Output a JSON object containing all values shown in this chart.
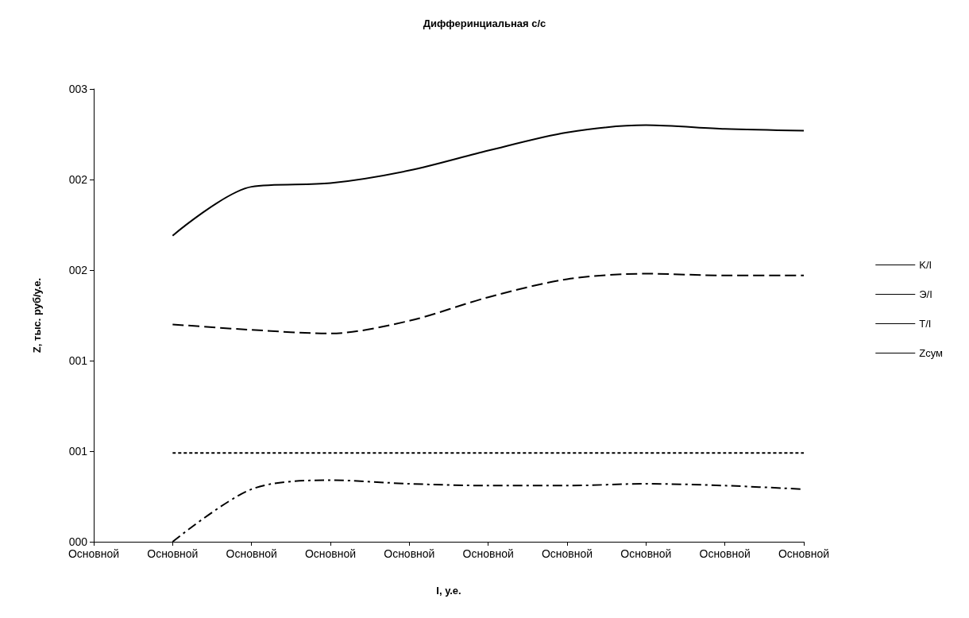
{
  "chart_data": {
    "type": "line",
    "title": "Дифферинциальная с/с",
    "xlabel": "I, у.е.",
    "ylabel": "Z, тыс. руб/у.е.",
    "categories": [
      "Основной",
      "Основной",
      "Основной",
      "Основной",
      "Основной",
      "Основной",
      "Основной",
      "Основной",
      "Основной",
      "Основной"
    ],
    "series": [
      {
        "name": "K/I",
        "color": "#000000",
        "line_style": "dotted",
        "values": [
          null,
          0.49,
          0.49,
          0.49,
          0.49,
          0.49,
          0.49,
          0.49,
          0.49,
          0.49
        ]
      },
      {
        "name": "Э/I",
        "color": "#000000",
        "line_style": "dashed",
        "values": [
          null,
          1.2,
          1.17,
          1.15,
          1.22,
          1.35,
          1.45,
          1.48,
          1.47,
          1.47
        ]
      },
      {
        "name": "T/I",
        "color": "#000000",
        "line_style": "dashdot",
        "values": [
          null,
          0,
          0.29,
          0.34,
          0.32,
          0.31,
          0.31,
          0.32,
          0.31,
          0.29
        ]
      },
      {
        "name": "Zсум",
        "color": "#000000",
        "line_style": "solid",
        "values": [
          null,
          1.69,
          1.96,
          1.98,
          2.05,
          2.16,
          2.26,
          2.3,
          2.28,
          2.27
        ]
      }
    ],
    "ylim": [
      0,
      2.5
    ],
    "yticks": [
      {
        "value": 0,
        "label": "000"
      },
      {
        "value": 0.5,
        "label": "001"
      },
      {
        "value": 1,
        "label": "001"
      },
      {
        "value": 1.5,
        "label": "002"
      },
      {
        "value": 2,
        "label": "002"
      },
      {
        "value": 2.5,
        "label": "003"
      }
    ],
    "grid": false,
    "legend": "right",
    "marker": "none"
  }
}
